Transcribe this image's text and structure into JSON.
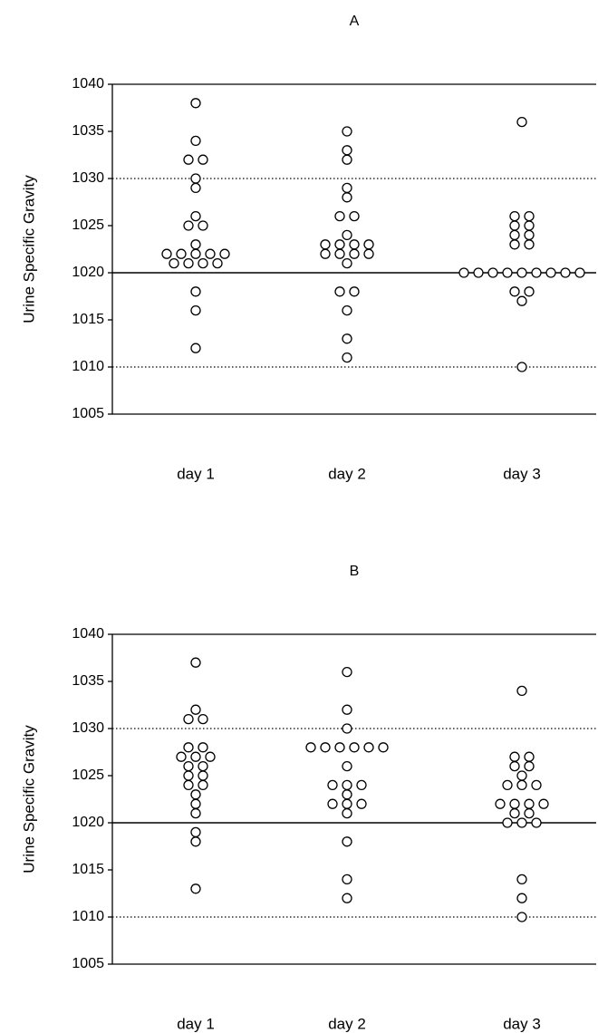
{
  "chart_data": [
    {
      "type": "scatter",
      "title": "A",
      "xlabel": "",
      "ylabel": "Urine Specific Gravity",
      "ylim": [
        1005,
        1040
      ],
      "yticks": [
        1005,
        1010,
        1015,
        1020,
        1025,
        1030,
        1035,
        1040
      ],
      "categories": [
        "day 1",
        "day 2",
        "day 3"
      ],
      "reference_lines": [
        {
          "y": 1020,
          "style": "solid"
        },
        {
          "y": 1010,
          "style": "dotted"
        },
        {
          "y": 1030,
          "style": "dotted"
        }
      ],
      "series": [
        {
          "values": [
            1038,
            1034,
            1032,
            1032,
            1030,
            1029,
            1026,
            1025,
            1025,
            1023,
            1022,
            1022,
            1022,
            1022,
            1022,
            1021,
            1021,
            1021,
            1021,
            1018,
            1016,
            1012
          ]
        },
        {
          "values": [
            1035,
            1033,
            1032,
            1029,
            1028,
            1026,
            1026,
            1024,
            1023,
            1023,
            1023,
            1023,
            1022,
            1022,
            1022,
            1022,
            1021,
            1018,
            1018,
            1016,
            1013,
            1011
          ]
        },
        {
          "values": [
            1036,
            1026,
            1026,
            1025,
            1025,
            1024,
            1024,
            1023,
            1023,
            1020,
            1020,
            1020,
            1020,
            1020,
            1020,
            1020,
            1020,
            1020,
            1018,
            1018,
            1017,
            1010
          ]
        }
      ]
    },
    {
      "type": "scatter",
      "title": "B",
      "xlabel": "",
      "ylabel": "Urine Specific Gravity",
      "ylim": [
        1005,
        1040
      ],
      "yticks": [
        1005,
        1010,
        1015,
        1020,
        1025,
        1030,
        1035,
        1040
      ],
      "categories": [
        "day 1",
        "day 2",
        "day 3"
      ],
      "reference_lines": [
        {
          "y": 1020,
          "style": "solid"
        },
        {
          "y": 1010,
          "style": "dotted"
        },
        {
          "y": 1030,
          "style": "dotted"
        }
      ],
      "series": [
        {
          "values": [
            1037,
            1032,
            1031,
            1031,
            1028,
            1028,
            1027,
            1027,
            1027,
            1026,
            1026,
            1025,
            1025,
            1024,
            1024,
            1023,
            1022,
            1021,
            1019,
            1018,
            1013
          ]
        },
        {
          "values": [
            1036,
            1032,
            1030,
            1028,
            1028,
            1028,
            1028,
            1028,
            1028,
            1026,
            1024,
            1024,
            1024,
            1023,
            1022,
            1022,
            1022,
            1021,
            1018,
            1014,
            1012
          ]
        },
        {
          "values": [
            1034,
            1027,
            1027,
            1026,
            1026,
            1025,
            1024,
            1024,
            1024,
            1022,
            1022,
            1022,
            1022,
            1021,
            1021,
            1020,
            1020,
            1020,
            1014,
            1012,
            1010
          ]
        }
      ]
    }
  ]
}
